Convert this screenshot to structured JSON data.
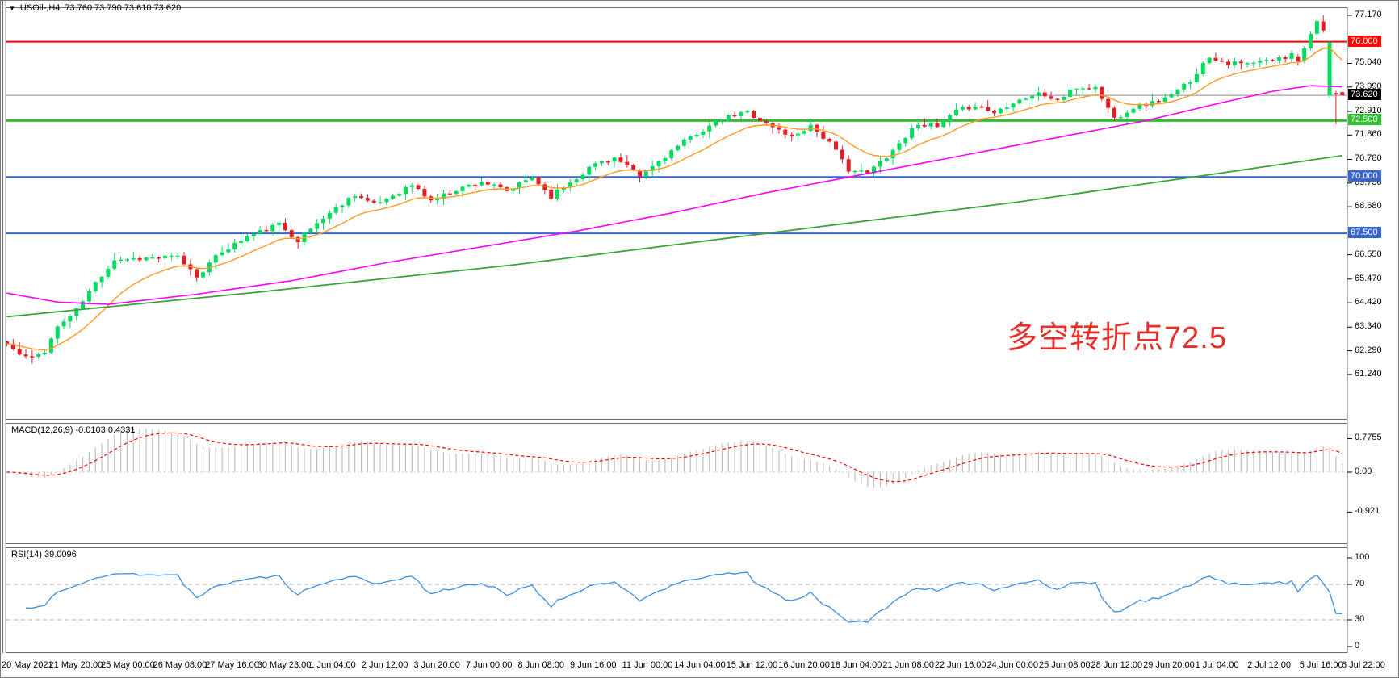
{
  "window": {
    "title_symbol": "USOil-,H4",
    "title_ohlc": "73.760 73.790 73.610 73.620",
    "dropdown_icon": "chart-symbol-dropdown"
  },
  "annotation": {
    "text": "多空转折点72.5",
    "color": "#e8302b"
  },
  "macd_panel": {
    "label": "MACD(12,26,9) -0.0103 0.4331",
    "ticks": [
      {
        "v": 0.7755,
        "label": "0.7755"
      },
      {
        "v": 0,
        "label": "0.00"
      },
      {
        "v": -0.921,
        "label": "-0.921"
      }
    ],
    "hist_color": "#bfbfbf",
    "signal_color": "#ff0000"
  },
  "rsi_panel": {
    "label": "RSI(14) 39.0096",
    "ticks": [
      {
        "v": 100,
        "label": "100"
      },
      {
        "v": 70,
        "label": "70"
      },
      {
        "v": 30,
        "label": "30"
      },
      {
        "v": 0,
        "label": "0"
      }
    ],
    "levels": [
      70,
      30
    ],
    "line_color": "#3e8ede",
    "level_color": "#ababab"
  },
  "price_axis": {
    "plain_ticks": [
      "77.170",
      "75.040",
      "73.990",
      "72.910",
      "71.860",
      "70.780",
      "69.730",
      "68.680",
      "66.550",
      "65.470",
      "64.420",
      "63.340",
      "62.290",
      "61.240"
    ],
    "badges": [
      {
        "label": "76.000",
        "value": 76.0,
        "bg": "#ff0000"
      },
      {
        "label": "73.620",
        "value": 73.62,
        "bg": "#000000"
      },
      {
        "label": "72.500",
        "value": 72.5,
        "bg": "#30be30"
      },
      {
        "label": "70.000",
        "value": 70.0,
        "bg": "#3a66cc"
      },
      {
        "label": "67.500",
        "value": 67.5,
        "bg": "#3a66cc"
      }
    ]
  },
  "time_axis": {
    "labels": [
      "20 May 2021",
      "21 May 20:00",
      "25 May 00:00",
      "26 May 08:00",
      "27 May 16:00",
      "30 May 23:00",
      "1 Jun 04:00",
      "2 Jun 12:00",
      "3 Jun 20:00",
      "7 Jun 00:00",
      "8 Jun 08:00",
      "9 Jun 16:00",
      "11 Jun 00:00",
      "14 Jun 04:00",
      "15 Jun 12:00",
      "16 Jun 20:00",
      "18 Jun 04:00",
      "21 Jun 08:00",
      "22 Jun 16:00",
      "24 Jun 00:00",
      "25 Jun 08:00",
      "28 Jun 12:00",
      "29 Jun 20:00",
      "1 Jul 04:00",
      "2 Jul 12:00",
      "5 Jul 16:00",
      "6 Jul 22:00"
    ]
  },
  "chart_data": {
    "type": "candlestick",
    "symbol": "USOil",
    "timeframe": "H4",
    "last_ohlc": {
      "open": 73.76,
      "high": 73.79,
      "low": 73.61,
      "close": 73.62
    },
    "price_range": [
      61.24,
      77.17
    ],
    "bars": 212,
    "close_waypoints": [
      [
        0,
        62.6
      ],
      [
        2,
        62.1
      ],
      [
        4,
        61.95
      ],
      [
        6,
        62.3
      ],
      [
        8,
        63.35
      ],
      [
        11,
        64.1
      ],
      [
        14,
        65.3
      ],
      [
        17,
        66.35
      ],
      [
        27,
        66.45
      ],
      [
        30,
        65.6
      ],
      [
        34,
        66.7
      ],
      [
        38,
        67.35
      ],
      [
        43,
        67.9
      ],
      [
        46,
        67.2
      ],
      [
        50,
        68.2
      ],
      [
        55,
        69.25
      ],
      [
        58,
        68.75
      ],
      [
        64,
        69.65
      ],
      [
        67,
        68.95
      ],
      [
        71,
        69.45
      ],
      [
        75,
        69.8
      ],
      [
        79,
        69.35
      ],
      [
        83,
        70.0
      ],
      [
        86,
        69.15
      ],
      [
        93,
        70.6
      ],
      [
        96,
        70.85
      ],
      [
        100,
        70.0
      ],
      [
        105,
        71.15
      ],
      [
        109,
        71.95
      ],
      [
        113,
        72.55
      ],
      [
        117,
        72.9
      ],
      [
        120,
        72.35
      ],
      [
        124,
        71.8
      ],
      [
        127,
        72.3
      ],
      [
        130,
        71.5
      ],
      [
        133,
        70.35
      ],
      [
        136,
        70.15
      ],
      [
        140,
        71.2
      ],
      [
        144,
        72.4
      ],
      [
        147,
        72.2
      ],
      [
        150,
        72.9
      ],
      [
        153,
        73.2
      ],
      [
        156,
        72.85
      ],
      [
        159,
        73.35
      ],
      [
        163,
        73.7
      ],
      [
        166,
        73.4
      ],
      [
        169,
        73.95
      ],
      [
        172,
        73.95
      ],
      [
        175,
        72.6
      ],
      [
        178,
        73.1
      ],
      [
        181,
        73.3
      ],
      [
        184,
        73.6
      ],
      [
        187,
        74.3
      ],
      [
        190,
        75.35
      ],
      [
        193,
        75.05
      ],
      [
        196,
        75.0
      ],
      [
        199,
        75.15
      ],
      [
        202,
        75.3
      ],
      [
        203,
        75.55
      ],
      [
        204,
        75.1
      ]
    ],
    "last_bars": [
      {
        "o": 75.35,
        "h": 75.45,
        "l": 74.95,
        "c": 75.12
      },
      {
        "o": 75.15,
        "h": 75.8,
        "l": 75.05,
        "c": 75.7
      },
      {
        "o": 75.7,
        "h": 76.45,
        "l": 75.6,
        "c": 76.35
      },
      {
        "o": 76.35,
        "h": 77.0,
        "l": 76.25,
        "c": 76.92
      },
      {
        "o": 76.9,
        "h": 77.17,
        "l": 76.4,
        "c": 76.5
      },
      {
        "o": 73.62,
        "h": 76.05,
        "l": 73.5,
        "c": 75.98
      },
      {
        "o": 73.72,
        "h": 73.82,
        "l": 72.33,
        "c": 73.66
      },
      {
        "o": 73.76,
        "h": 73.79,
        "l": 73.61,
        "c": 73.62
      }
    ],
    "hlines": [
      {
        "price": 76.0,
        "color": "#ff0000",
        "width": 2
      },
      {
        "price": 73.62,
        "color": "#8c8c8c",
        "width": 1
      },
      {
        "price": 72.5,
        "color": "#30be30",
        "width": 3
      },
      {
        "price": 70.0,
        "color": "#3a66cc",
        "width": 2
      },
      {
        "price": 67.5,
        "color": "#3a66cc",
        "width": 2
      }
    ],
    "moving_averages": {
      "fast_ema_period": 13,
      "fast_color": "#ff9e2e",
      "mid_color": "#ff00ff",
      "mid_waypoints": [
        [
          0,
          64.85
        ],
        [
          8,
          64.45
        ],
        [
          16,
          64.35
        ],
        [
          30,
          64.8
        ],
        [
          45,
          65.4
        ],
        [
          60,
          66.2
        ],
        [
          75,
          66.9
        ],
        [
          90,
          67.6
        ],
        [
          105,
          68.4
        ],
        [
          120,
          69.3
        ],
        [
          135,
          70.1
        ],
        [
          150,
          70.9
        ],
        [
          165,
          71.7
        ],
        [
          180,
          72.5
        ],
        [
          192,
          73.3
        ],
        [
          200,
          73.8
        ],
        [
          206,
          74.05
        ],
        [
          211,
          74.0
        ]
      ],
      "slow_color": "#3da43d",
      "slow_waypoints": [
        [
          0,
          63.8
        ],
        [
          40,
          64.9
        ],
        [
          80,
          66.1
        ],
        [
          120,
          67.5
        ],
        [
          160,
          68.9
        ],
        [
          190,
          70.1
        ],
        [
          211,
          70.95
        ]
      ]
    },
    "candle_colors": {
      "bull": "#00dc5e",
      "bear": "#e51e25"
    },
    "generator": {
      "seed": 11,
      "noise": 0.22,
      "wick": 0.28
    }
  }
}
